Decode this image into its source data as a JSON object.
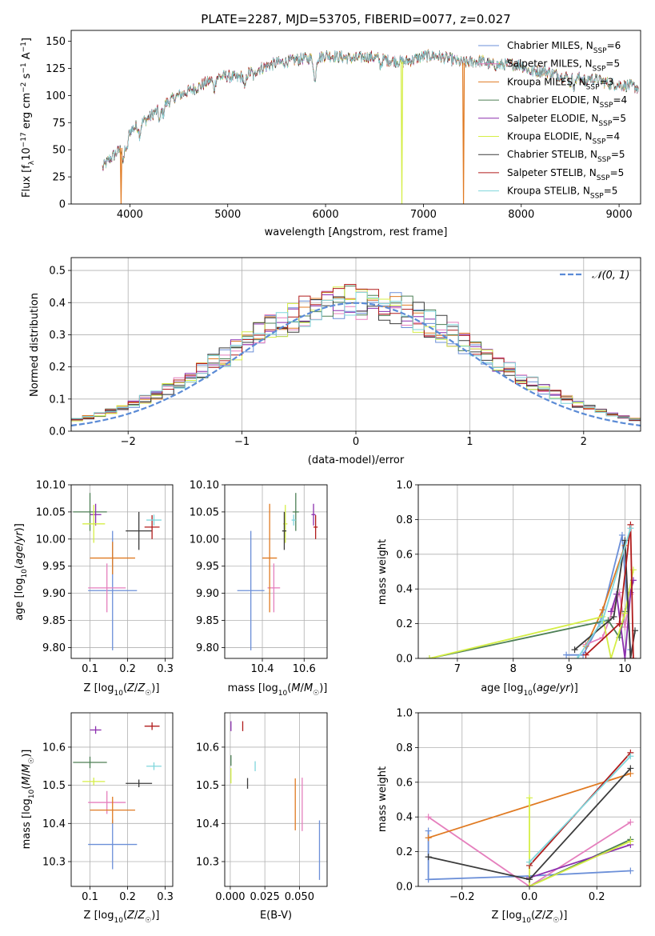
{
  "figure": {
    "title": "PLATE=2287, MJD=53705, FIBERID=0077, z=0.027"
  },
  "colors": {
    "Chabrier MILES": "#6b8fd8",
    "Salpeter MILES": "#e57fbd",
    "Kroupa MILES": "#e07a22",
    "Chabrier ELODIE": "#4d7f55",
    "Salpeter ELODIE": "#8b2fae",
    "Kroupa ELODIE": "#d5ee46",
    "Chabrier STELIB": "#3b3b3b",
    "Salpeter STELIB": "#b11c1c",
    "Kroupa STELIB": "#7fd6dc"
  },
  "chart_data": [
    {
      "id": "spectrum",
      "type": "line",
      "xlabel": "wavelength [Angstrom, rest frame]",
      "ylabel": "Flux [f_λ10^-17 erg cm^-2 s^-1 A^-1]",
      "xlim": [
        3400,
        9220
      ],
      "ylim": [
        0,
        160
      ],
      "xticks": [
        4000,
        5000,
        6000,
        7000,
        8000,
        9000
      ],
      "yticks": [
        0,
        25,
        50,
        75,
        100,
        125,
        150
      ],
      "grid": false,
      "legend_position": "right",
      "legend": [
        {
          "name": "Chabrier MILES",
          "nssp": "6"
        },
        {
          "name": "Salpeter MILES",
          "nssp": "5"
        },
        {
          "name": "Kroupa MILES",
          "nssp": "3"
        },
        {
          "name": "Chabrier ELODIE",
          "nssp": "4"
        },
        {
          "name": "Salpeter ELODIE",
          "nssp": "5"
        },
        {
          "name": "Kroupa ELODIE",
          "nssp": "4"
        },
        {
          "name": "Chabrier STELIB",
          "nssp": "5"
        },
        {
          "name": "Salpeter STELIB",
          "nssp": "5"
        },
        {
          "name": "Kroupa STELIB",
          "nssp": "5"
        }
      ],
      "continuum": {
        "x": [
          3720,
          3800,
          3900,
          4000,
          4100,
          4200,
          4300,
          4400,
          4500,
          4600,
          4700,
          4800,
          4900,
          5000,
          5100,
          5200,
          5300,
          5400,
          5500,
          5600,
          5700,
          5800,
          5900,
          6000,
          6100,
          6200,
          6300,
          6400,
          6500,
          6600,
          6700,
          6800,
          6900,
          7000,
          7100,
          7200,
          7300,
          7400,
          7500,
          7600,
          7700,
          7800,
          7900,
          8000,
          8100,
          8200,
          8300,
          8400,
          8500,
          8600,
          8700,
          8800,
          8900,
          9000,
          9100,
          9200
        ],
        "y": [
          33,
          42,
          50,
          67,
          74,
          80,
          88,
          95,
          100,
          104,
          108,
          113,
          117,
          118,
          116,
          120,
          124,
          127,
          130,
          131,
          133,
          134,
          134,
          137,
          136,
          135,
          134,
          136,
          135,
          133,
          132,
          131,
          133,
          136,
          137,
          135,
          133,
          130,
          131,
          132,
          128,
          128,
          129,
          128,
          122,
          123,
          121,
          118,
          117,
          116,
          116,
          114,
          111,
          110,
          109,
          107
        ]
      },
      "dropouts": [
        {
          "x": 3910,
          "series": "Kroupa MILES"
        },
        {
          "x": 6780,
          "series": "Kroupa ELODIE"
        },
        {
          "x": 7410,
          "series": "Kroupa MILES"
        }
      ]
    },
    {
      "id": "residuals",
      "type": "line",
      "xlabel": "(data-model)/error",
      "ylabel": "Normed distribution",
      "xlim": [
        -2.5,
        2.5
      ],
      "ylim": [
        0,
        0.54
      ],
      "xticks": [
        -2,
        -1,
        0,
        1,
        2
      ],
      "yticks": [
        0.0,
        0.1,
        0.2,
        0.3,
        0.4,
        0.5
      ],
      "grid": true,
      "legend_position": "top-right",
      "reference_curve": {
        "name": "N(0,1)",
        "mean": 0,
        "sigma": 1
      },
      "bin_width": 0.1
    },
    {
      "id": "age_vs_Z",
      "type": "scatter",
      "xlabel": "Z [log10(Z/Z☉)]",
      "ylabel": "age [log10(age/yr)]",
      "xlim": [
        0.05,
        0.32
      ],
      "ylim": [
        9.78,
        10.1
      ],
      "xticks": [
        0.1,
        0.2,
        0.3
      ],
      "yticks": [
        9.8,
        9.85,
        9.9,
        9.95,
        10.0,
        10.05,
        10.1
      ],
      "grid": true,
      "points": [
        {
          "series": "Chabrier MILES",
          "x": 0.16,
          "y": 9.905,
          "xerr": 0.065,
          "yerr": 0.11
        },
        {
          "series": "Salpeter MILES",
          "x": 0.145,
          "y": 9.91,
          "xerr": 0.05,
          "yerr": 0.045
        },
        {
          "series": "Kroupa MILES",
          "x": 0.16,
          "y": 9.965,
          "xerr": 0.06,
          "yerr": 0.03
        },
        {
          "series": "Chabrier ELODIE",
          "x": 0.1,
          "y": 10.05,
          "xerr": 0.045,
          "yerr": 0.035
        },
        {
          "series": "Salpeter ELODIE",
          "x": 0.115,
          "y": 10.045,
          "xerr": 0.015,
          "yerr": 0.02
        },
        {
          "series": "Kroupa ELODIE",
          "x": 0.11,
          "y": 10.028,
          "xerr": 0.03,
          "yerr": 0.035
        },
        {
          "series": "Chabrier STELIB",
          "x": 0.23,
          "y": 10.015,
          "xerr": 0.035,
          "yerr": 0.035
        },
        {
          "series": "Salpeter STELIB",
          "x": 0.265,
          "y": 10.022,
          "xerr": 0.02,
          "yerr": 0.022
        },
        {
          "series": "Kroupa STELIB",
          "x": 0.27,
          "y": 10.035,
          "xerr": 0.02,
          "yerr": 0.01
        }
      ]
    },
    {
      "id": "age_vs_mass",
      "type": "scatter",
      "xlabel": "mass [log10(M/M☉)]",
      "ylabel": "",
      "xlim": [
        10.22,
        10.71
      ],
      "ylim": [
        9.78,
        10.1
      ],
      "xticks": [
        10.4,
        10.6
      ],
      "yticks": [
        9.8,
        9.85,
        9.9,
        9.95,
        10.0,
        10.05,
        10.1
      ],
      "grid": true,
      "points": [
        {
          "series": "Chabrier MILES",
          "x": 10.345,
          "y": 9.905,
          "xerr": 0.065,
          "yerr": 0.11
        },
        {
          "series": "Salpeter MILES",
          "x": 10.455,
          "y": 9.91,
          "xerr": 0.03,
          "yerr": 0.045
        },
        {
          "series": "Kroupa MILES",
          "x": 10.435,
          "y": 9.965,
          "xerr": 0.035,
          "yerr": 0.1
        },
        {
          "series": "Chabrier ELODIE",
          "x": 10.56,
          "y": 10.05,
          "xerr": 0.015,
          "yerr": 0.035
        },
        {
          "series": "Salpeter ELODIE",
          "x": 10.645,
          "y": 10.045,
          "xerr": 0.01,
          "yerr": 0.02
        },
        {
          "series": "Kroupa ELODIE",
          "x": 10.51,
          "y": 10.028,
          "xerr": 0.01,
          "yerr": 0.035
        },
        {
          "series": "Chabrier STELIB",
          "x": 10.505,
          "y": 10.015,
          "xerr": 0.01,
          "yerr": 0.035
        },
        {
          "series": "Salpeter STELIB",
          "x": 10.655,
          "y": 10.022,
          "xerr": 0.01,
          "yerr": 0.022
        },
        {
          "series": "Kroupa STELIB",
          "x": 10.55,
          "y": 10.035,
          "xerr": 0.01,
          "yerr": 0.01
        }
      ]
    },
    {
      "id": "weights_vs_age",
      "type": "line",
      "xlabel": "age [log10(age/yr)]",
      "ylabel": "mass weight",
      "xlim": [
        6.3,
        10.28
      ],
      "ylim": [
        0,
        1
      ],
      "xticks": [
        7,
        8,
        9,
        10
      ],
      "yticks": [
        0.0,
        0.2,
        0.4,
        0.6,
        0.8,
        1.0
      ],
      "grid": true,
      "series": [
        {
          "name": "Chabrier MILES",
          "x": [
            8.95,
            9.25,
            9.55,
            9.95,
            10.1
          ],
          "y": [
            0.02,
            0.02,
            0.2,
            0.71,
            0.05
          ]
        },
        {
          "name": "Salpeter MILES",
          "x": [
            9.3,
            9.6,
            9.9,
            10.0,
            10.1
          ],
          "y": [
            0.08,
            0.12,
            0.38,
            0.18,
            0.37
          ]
        },
        {
          "name": "Kroupa MILES",
          "x": [
            9.3,
            9.6,
            10.0
          ],
          "y": [
            0.07,
            0.28,
            0.65
          ]
        },
        {
          "name": "Chabrier ELODIE",
          "x": [
            6.5,
            9.7,
            9.9,
            10.0
          ],
          "y": [
            0.0,
            0.22,
            0.12,
            0.27
          ]
        },
        {
          "name": "Salpeter ELODIE",
          "x": [
            9.75,
            9.85,
            10.0,
            10.1,
            10.15
          ],
          "y": [
            0.27,
            0.37,
            0.0,
            0.38,
            0.45
          ]
        },
        {
          "name": "Kroupa ELODIE",
          "x": [
            6.5,
            9.6,
            9.75,
            10.0,
            10.15
          ],
          "y": [
            0.0,
            0.24,
            0.0,
            0.26,
            0.51
          ]
        },
        {
          "name": "Chabrier STELIB",
          "x": [
            9.1,
            9.8,
            10.0,
            10.1,
            10.18
          ],
          "y": [
            0.05,
            0.24,
            0.68,
            0.0,
            0.16
          ]
        },
        {
          "name": "Salpeter STELIB",
          "x": [
            9.3,
            9.9,
            10.1,
            10.15
          ],
          "y": [
            0.02,
            0.2,
            0.77,
            0.0
          ]
        },
        {
          "name": "Kroupa STELIB",
          "x": [
            9.15,
            9.6,
            10.1
          ],
          "y": [
            0.0,
            0.22,
            0.75
          ]
        }
      ]
    },
    {
      "id": "mass_vs_Z",
      "type": "scatter",
      "xlabel": "Z [log10(Z/Z☉)]",
      "ylabel": "mass [log10(M/M☉)]",
      "xlim": [
        0.05,
        0.32
      ],
      "ylim": [
        10.235,
        10.69
      ],
      "xticks": [
        0.1,
        0.2,
        0.3
      ],
      "yticks": [
        10.3,
        10.4,
        10.5,
        10.6
      ],
      "grid": true,
      "points": [
        {
          "series": "Chabrier MILES",
          "x": 0.16,
          "y": 10.345,
          "xerr": 0.065,
          "yerr": 0.065
        },
        {
          "series": "Salpeter MILES",
          "x": 0.145,
          "y": 10.455,
          "xerr": 0.05,
          "yerr": 0.03
        },
        {
          "series": "Kroupa MILES",
          "x": 0.16,
          "y": 10.435,
          "xerr": 0.06,
          "yerr": 0.035
        },
        {
          "series": "Chabrier ELODIE",
          "x": 0.1,
          "y": 10.56,
          "xerr": 0.045,
          "yerr": 0.015
        },
        {
          "series": "Salpeter ELODIE",
          "x": 0.115,
          "y": 10.645,
          "xerr": 0.015,
          "yerr": 0.01
        },
        {
          "series": "Kroupa ELODIE",
          "x": 0.11,
          "y": 10.51,
          "xerr": 0.03,
          "yerr": 0.01
        },
        {
          "series": "Chabrier STELIB",
          "x": 0.23,
          "y": 10.505,
          "xerr": 0.035,
          "yerr": 0.01
        },
        {
          "series": "Salpeter STELIB",
          "x": 0.265,
          "y": 10.655,
          "xerr": 0.02,
          "yerr": 0.01
        },
        {
          "series": "Kroupa STELIB",
          "x": 0.27,
          "y": 10.55,
          "xerr": 0.02,
          "yerr": 0.01
        }
      ]
    },
    {
      "id": "mass_vs_EBV",
      "type": "scatter",
      "xlabel": "E(B-V)",
      "ylabel": "",
      "xlim": [
        -0.004,
        0.07
      ],
      "ylim": [
        10.235,
        10.69
      ],
      "xticks": [
        0.0,
        0.025,
        0.05
      ],
      "yticks": [
        10.3,
        10.4,
        10.5,
        10.6
      ],
      "grid": true,
      "points": [
        {
          "series": "Chabrier MILES",
          "x": 0.0645,
          "y": 10.33,
          "xerr": 0,
          "yerr": 0.078
        },
        {
          "series": "Salpeter MILES",
          "x": 0.052,
          "y": 10.45,
          "xerr": 0,
          "yerr": 0.07
        },
        {
          "series": "Kroupa MILES",
          "x": 0.047,
          "y": 10.45,
          "xerr": 0,
          "yerr": 0.068
        },
        {
          "series": "Chabrier ELODIE",
          "x": 0.0005,
          "y": 10.565,
          "xerr": 0,
          "yerr": 0.014
        },
        {
          "series": "Salpeter ELODIE",
          "x": 0.0005,
          "y": 10.655,
          "xerr": 0,
          "yerr": 0.013
        },
        {
          "series": "Kroupa ELODIE",
          "x": 0.0005,
          "y": 10.525,
          "xerr": 0,
          "yerr": 0.02
        },
        {
          "series": "Chabrier STELIB",
          "x": 0.0125,
          "y": 10.505,
          "xerr": 0,
          "yerr": 0.014
        },
        {
          "series": "Salpeter STELIB",
          "x": 0.009,
          "y": 10.655,
          "xerr": 0,
          "yerr": 0.013
        },
        {
          "series": "Kroupa STELIB",
          "x": 0.018,
          "y": 10.55,
          "xerr": 0,
          "yerr": 0.013
        }
      ]
    },
    {
      "id": "weights_vs_Z",
      "type": "line",
      "xlabel": "Z [log10(Z/Z☉)]",
      "ylabel": "mass weight",
      "xlim": [
        -0.33,
        0.33
      ],
      "ylim": [
        0,
        1
      ],
      "xticks": [
        -0.2,
        0.0,
        0.2
      ],
      "yticks": [
        0.0,
        0.2,
        0.4,
        0.6,
        0.8,
        1.0
      ],
      "grid": true,
      "series": [
        {
          "name": "Chabrier MILES",
          "x": [
            -0.3,
            -0.3,
            0.0,
            0.3
          ],
          "y": [
            0.32,
            0.04,
            0.06,
            0.09
          ]
        },
        {
          "name": "Salpeter MILES",
          "x": [
            -0.3,
            0.0,
            0.3
          ],
          "y": [
            0.4,
            0.0,
            0.37
          ]
        },
        {
          "name": "Kroupa MILES",
          "x": [
            -0.3,
            0.3
          ],
          "y": [
            0.28,
            0.65
          ]
        },
        {
          "name": "Chabrier ELODIE",
          "x": [
            0.0,
            0.3
          ],
          "y": [
            0.0,
            0.27
          ]
        },
        {
          "name": "Salpeter ELODIE",
          "x": [
            0.0,
            0.3
          ],
          "y": [
            0.05,
            0.24
          ]
        },
        {
          "name": "Kroupa ELODIE",
          "x": [
            0.0,
            0.0,
            0.3
          ],
          "y": [
            0.51,
            0.0,
            0.26
          ]
        },
        {
          "name": "Chabrier STELIB",
          "x": [
            -0.3,
            0.0,
            0.3
          ],
          "y": [
            0.17,
            0.04,
            0.68
          ]
        },
        {
          "name": "Salpeter STELIB",
          "x": [
            0.0,
            0.3
          ],
          "y": [
            0.12,
            0.77
          ]
        },
        {
          "name": "Kroupa STELIB",
          "x": [
            0.0,
            0.3
          ],
          "y": [
            0.14,
            0.75
          ]
        }
      ]
    }
  ]
}
